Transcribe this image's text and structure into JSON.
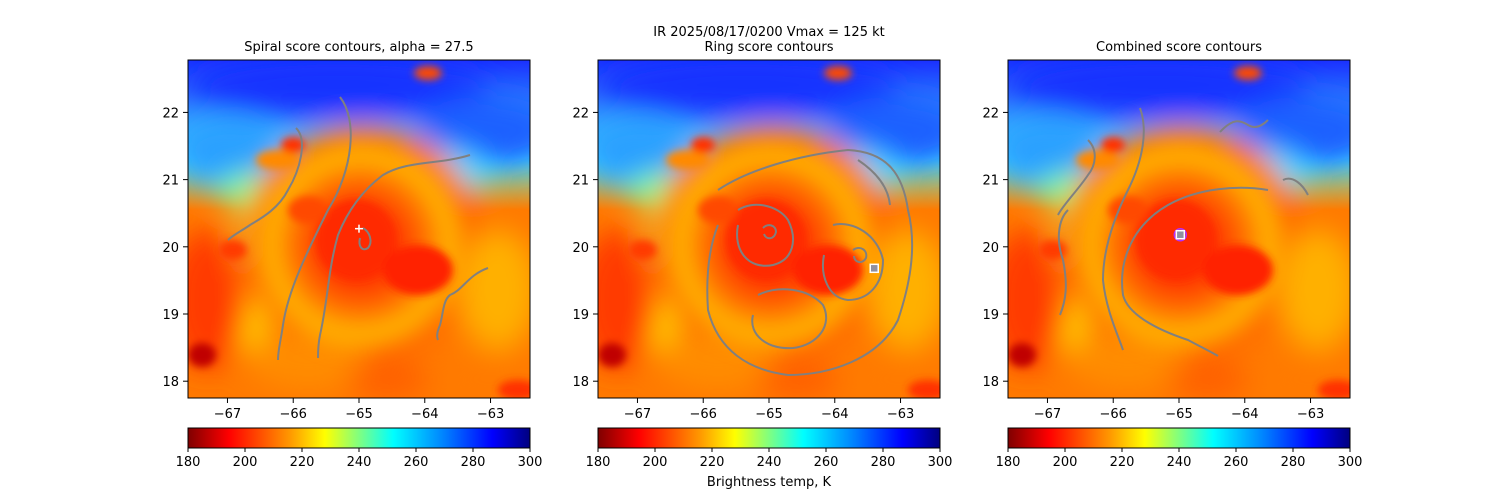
{
  "figure": {
    "suptitle_line1": "IR  2025/08/17/0200    Vmax = 125 kt",
    "colorbar_label": "Brightness temp, K"
  },
  "chart_data": [
    {
      "type": "heatmap",
      "title": "Spiral score contours, alpha = 27.5",
      "x_ticks": [
        -67,
        -66,
        -65,
        -64,
        -63
      ],
      "y_ticks": [
        18,
        19,
        20,
        21,
        22
      ],
      "xlim": [
        -67.6,
        -62.4
      ],
      "ylim": [
        17.75,
        22.78
      ],
      "center_marker": {
        "symbol": "+",
        "x": -65.0,
        "y": 20.27
      },
      "contour_color": "#808080",
      "colorbar": {
        "min": 180,
        "max": 300,
        "ticks": [
          180,
          200,
          220,
          240,
          260,
          280,
          300
        ],
        "colormap": "jet_r"
      }
    },
    {
      "type": "heatmap",
      "title": "Ring score contours",
      "x_ticks": [
        -67,
        -66,
        -65,
        -64,
        -63
      ],
      "y_ticks": [
        18,
        19,
        20,
        21,
        22
      ],
      "xlim": [
        -67.6,
        -62.4
      ],
      "ylim": [
        17.75,
        22.78
      ],
      "center_marker": {
        "symbol": "square",
        "x": -63.4,
        "y": 19.68
      },
      "contour_color": "#808080",
      "colorbar": {
        "min": 180,
        "max": 300,
        "ticks": [
          180,
          200,
          220,
          240,
          260,
          280,
          300
        ],
        "colormap": "jet_r"
      }
    },
    {
      "type": "heatmap",
      "title": "Combined score contours",
      "x_ticks": [
        -67,
        -66,
        -65,
        -64,
        -63
      ],
      "y_ticks": [
        18,
        19,
        20,
        21,
        22
      ],
      "xlim": [
        -67.6,
        -62.4
      ],
      "ylim": [
        17.75,
        22.78
      ],
      "center_marker": {
        "symbol": "square",
        "x": -64.98,
        "y": 20.18
      },
      "contour_color": "#808080",
      "colorbar": {
        "min": 180,
        "max": 300,
        "ticks": [
          180,
          200,
          220,
          240,
          260,
          280,
          300
        ],
        "colormap": "jet_r"
      }
    }
  ]
}
